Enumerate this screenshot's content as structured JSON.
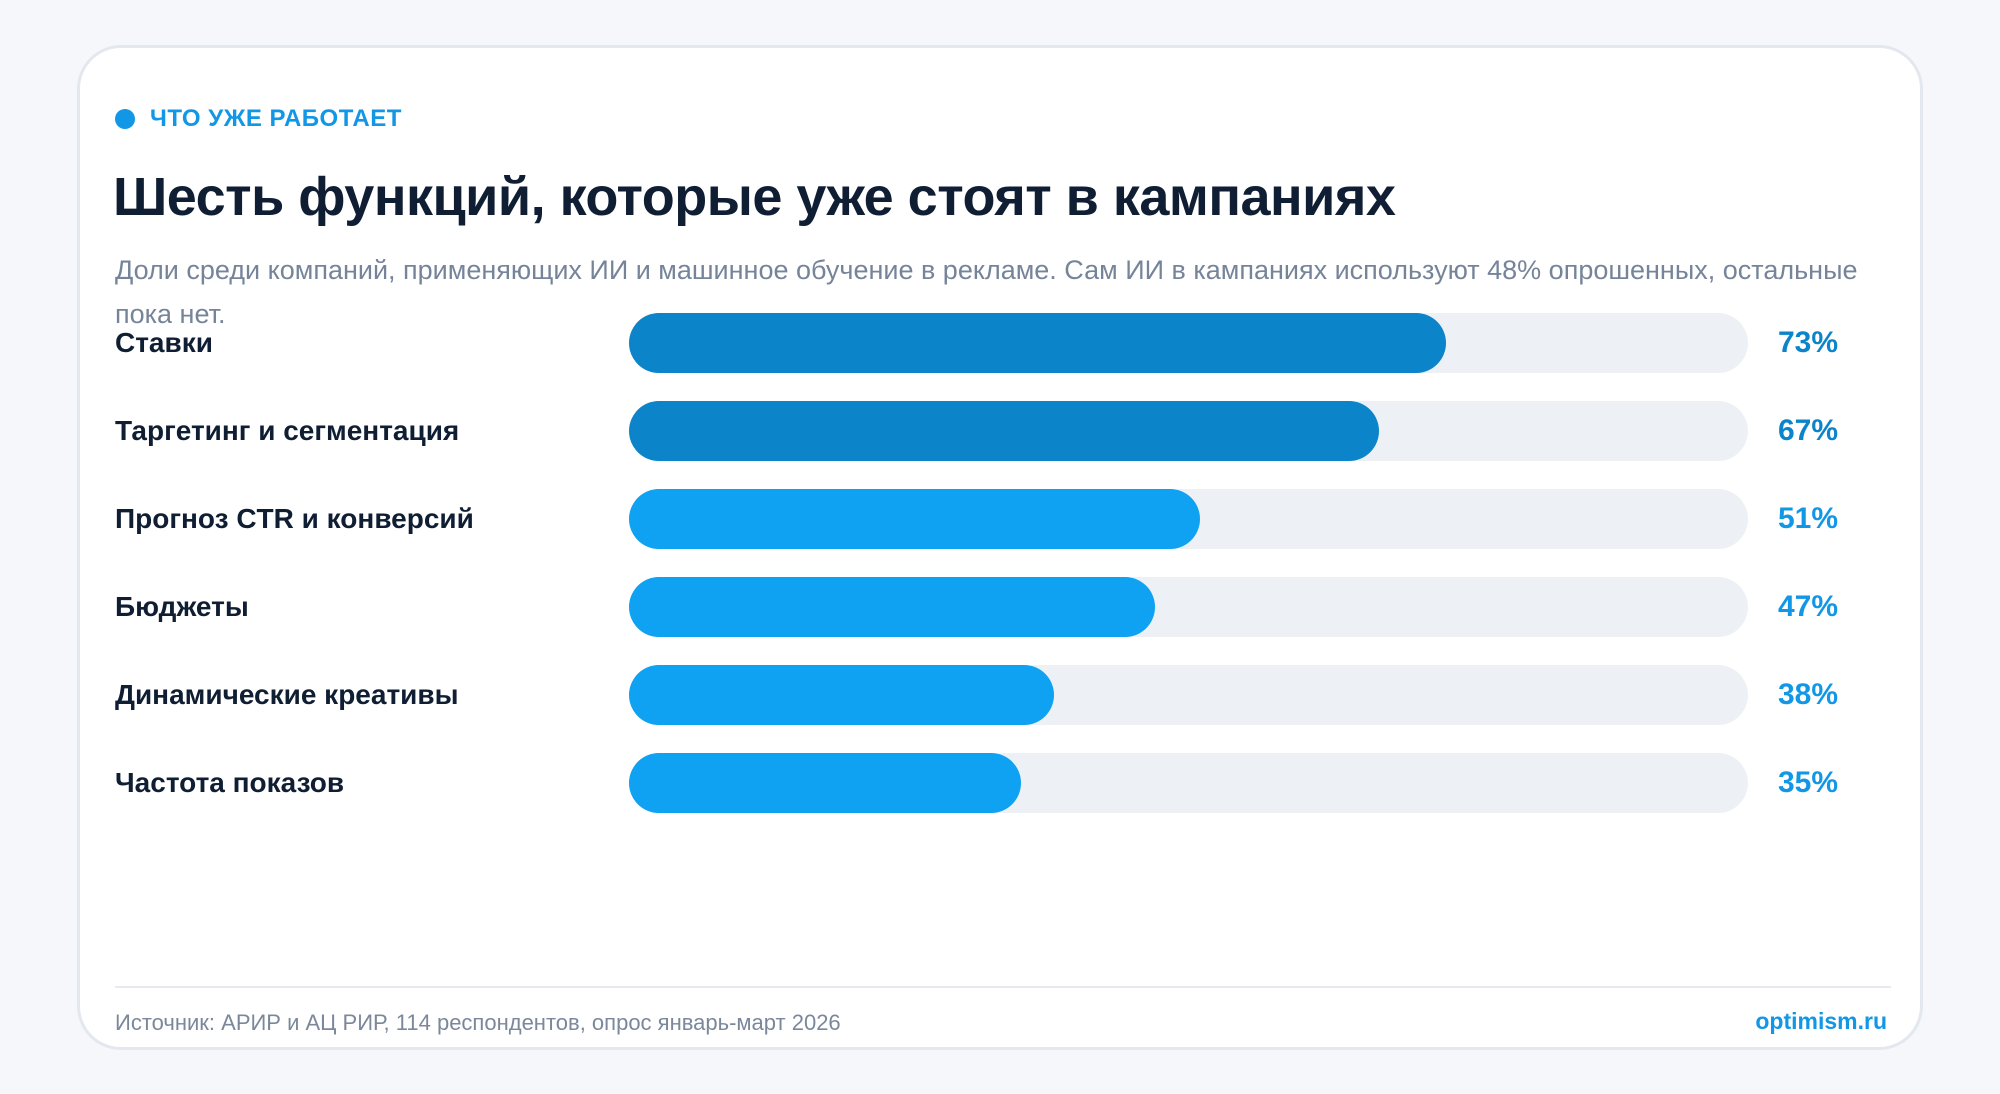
{
  "header": {
    "eyebrow": "ЧТО УЖЕ РАБОТАЕТ",
    "title": "Шесть функций, которые уже стоят в кампаниях",
    "subtitle": "Доли среди компаний, применяющих ИИ и машинное обучение в рекламе. Сам ИИ в кампаниях используют 48% опрошенных, остальные пока нет."
  },
  "footer": {
    "source": "Источник: АРИР и АЦ РИР, 114 респондентов, опрос январь-март 2026",
    "brand": "optimism.ru"
  },
  "colors": {
    "accent": "#1197e6",
    "dark_fill": "#0b84c9",
    "light_fill": "#0fa1f2",
    "track": "#edf1f5",
    "title": "#0f1e33"
  },
  "chart_data": {
    "type": "bar",
    "orientation": "horizontal",
    "categories": [
      "Ставки",
      "Таргетинг и сегментация",
      "Прогноз CTR и конверсий",
      "Бюджеты",
      "Динамические креативы",
      "Частота показов"
    ],
    "values": [
      73,
      67,
      51,
      47,
      38,
      35
    ],
    "value_labels": [
      "73%",
      "67%",
      "51%",
      "47%",
      "38%",
      "35%"
    ],
    "xlim": [
      0,
      100
    ],
    "grid": false,
    "legend": "none"
  }
}
